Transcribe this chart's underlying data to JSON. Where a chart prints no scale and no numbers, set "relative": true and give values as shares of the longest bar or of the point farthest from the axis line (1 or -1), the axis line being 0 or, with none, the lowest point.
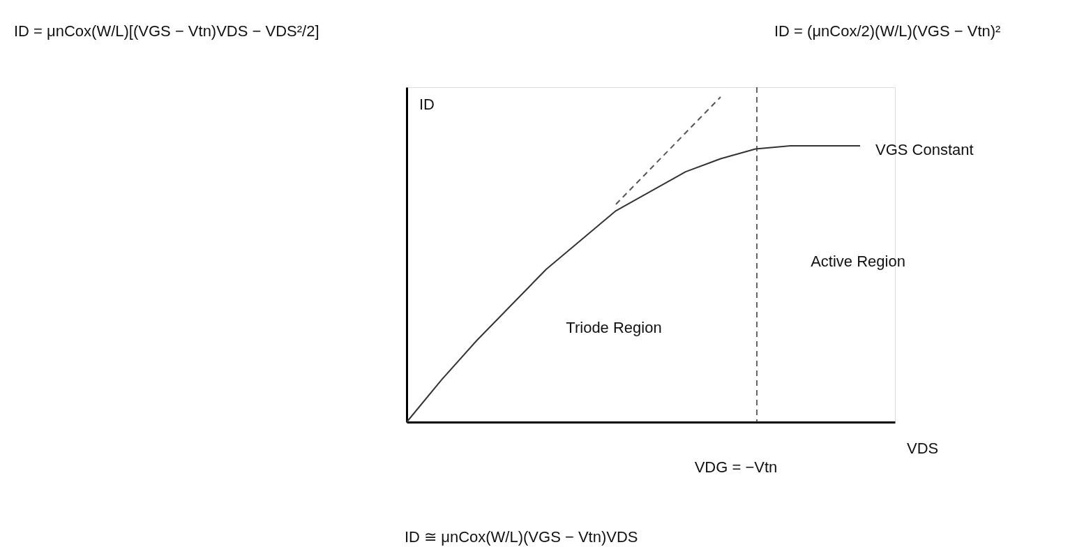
{
  "chart_data": {
    "type": "line",
    "relative": true,
    "xlabel": "VDS",
    "ylabel": "ID",
    "tick_labels": false,
    "categories": [
      null,
      null,
      null,
      null,
      null,
      null,
      null,
      null,
      null,
      null,
      null,
      null,
      null,
      null
    ],
    "series": [
      {
        "color": "#333333",
        "line_style": "solid",
        "values": [
          0,
          0.13,
          0.25,
          0.36,
          0.47,
          0.56,
          0.65,
          0.71,
          0.77,
          0.81,
          0.84,
          0.85,
          0.85,
          0.85
        ]
      },
      {
        "type": "line",
        "color": "#555555",
        "line_style": "dashed",
        "values": [
          null,
          null,
          null,
          null,
          null,
          null,
          0.67,
          0.78,
          0.89,
          1,
          null,
          null,
          null,
          null
        ]
      }
    ],
    "annotations": [
      "ID = μnCox(W/L)[(VGS − Vtn)VDS − VDS²/2]",
      "ID = (μnCox/2)(W/L)(VGS − Vtn)²",
      "VGS Constant",
      "Triode Region",
      "Active Region",
      "VDG = −Vtn",
      "ID ≅ μnCox(W/L)(VGS − Vtn)VDS"
    ]
  }
}
